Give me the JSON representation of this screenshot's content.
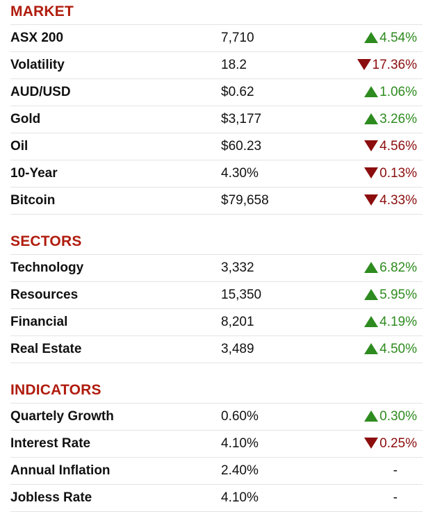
{
  "colors": {
    "section_title": "#b01c0e",
    "positive": "#2e8b1f",
    "negative": "#8b0d0d"
  },
  "sections": [
    {
      "title": "MARKET",
      "rows": [
        {
          "label": "ASX 200",
          "value": "7,710",
          "change": "4.54%",
          "direction": "up"
        },
        {
          "label": "Volatility",
          "value": "18.2",
          "change": "17.36%",
          "direction": "down"
        },
        {
          "label": "AUD/USD",
          "value": "$0.62",
          "change": "1.06%",
          "direction": "up"
        },
        {
          "label": "Gold",
          "value": "$3,177",
          "change": "3.26%",
          "direction": "up"
        },
        {
          "label": "Oil",
          "value": "$60.23",
          "change": "4.56%",
          "direction": "down"
        },
        {
          "label": "10-Year",
          "value": "4.30%",
          "change": "0.13%",
          "direction": "down"
        },
        {
          "label": "Bitcoin",
          "value": "$79,658",
          "change": "4.33%",
          "direction": "down"
        }
      ]
    },
    {
      "title": "SECTORS",
      "rows": [
        {
          "label": "Technology",
          "value": "3,332",
          "change": "6.82%",
          "direction": "up"
        },
        {
          "label": "Resources",
          "value": "15,350",
          "change": "5.95%",
          "direction": "up"
        },
        {
          "label": "Financial",
          "value": "8,201",
          "change": "4.19%",
          "direction": "up"
        },
        {
          "label": "Real Estate",
          "value": "3,489",
          "change": "4.50%",
          "direction": "up"
        }
      ]
    },
    {
      "title": "INDICATORS",
      "rows": [
        {
          "label": "Quartely Growth",
          "value": "0.60%",
          "change": "0.30%",
          "direction": "up"
        },
        {
          "label": "Interest Rate",
          "value": "4.10%",
          "change": "0.25%",
          "direction": "down"
        },
        {
          "label": "Annual Inflation",
          "value": "2.40%",
          "change": "-",
          "direction": "none"
        },
        {
          "label": "Jobless Rate",
          "value": "4.10%",
          "change": "-",
          "direction": "none"
        }
      ]
    }
  ]
}
